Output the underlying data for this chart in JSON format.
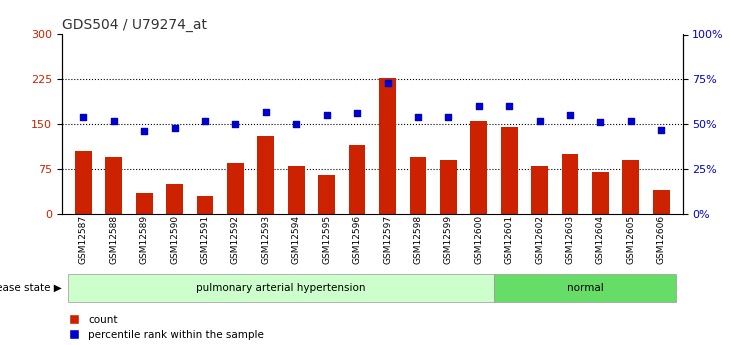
{
  "title": "GDS504 / U79274_at",
  "samples": [
    "GSM12587",
    "GSM12588",
    "GSM12589",
    "GSM12590",
    "GSM12591",
    "GSM12592",
    "GSM12593",
    "GSM12594",
    "GSM12595",
    "GSM12596",
    "GSM12597",
    "GSM12598",
    "GSM12599",
    "GSM12600",
    "GSM12601",
    "GSM12602",
    "GSM12603",
    "GSM12604",
    "GSM12605",
    "GSM12606"
  ],
  "bar_values": [
    105,
    95,
    35,
    50,
    30,
    85,
    130,
    80,
    65,
    115,
    228,
    95,
    90,
    155,
    145,
    80,
    100,
    70,
    90,
    40
  ],
  "dot_values_pct": [
    54,
    52,
    46,
    48,
    52,
    50,
    57,
    50,
    55,
    56,
    73,
    54,
    54,
    60,
    60,
    52,
    55,
    51,
    52,
    47
  ],
  "bar_color": "#cc2200",
  "dot_color": "#0000cc",
  "ylim_left": [
    0,
    300
  ],
  "ylim_right": [
    0,
    100
  ],
  "yticks_left": [
    0,
    75,
    150,
    225,
    300
  ],
  "yticks_right": [
    0,
    25,
    50,
    75,
    100
  ],
  "ytick_labels_right": [
    "0%",
    "25%",
    "50%",
    "75%",
    "100%"
  ],
  "hlines": [
    75,
    150,
    225
  ],
  "group1_label": "pulmonary arterial hypertension",
  "group2_label": "normal",
  "group1_count": 14,
  "group2_count": 6,
  "disease_state_label": "disease state",
  "legend_bar_label": "count",
  "legend_dot_label": "percentile rank within the sample",
  "bg_color_plot": "#ffffff",
  "group1_color": "#ccffcc",
  "group2_color": "#66dd66",
  "bar_width": 0.55,
  "title_color": "#333333",
  "left_axis_color": "#cc2200",
  "right_axis_color": "#0000cc"
}
